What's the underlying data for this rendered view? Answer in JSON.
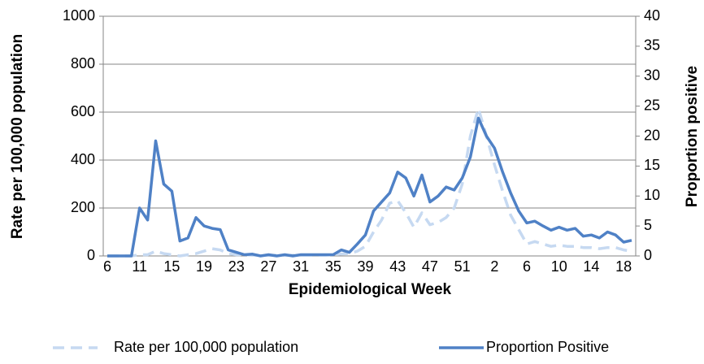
{
  "chart_data": {
    "type": "line",
    "xlabel": "Epidemiological Week",
    "ylabel": "Rate per 100,000 population",
    "y2label": "Proportion positive",
    "categories": [
      "6",
      null,
      null,
      null,
      "11",
      null,
      null,
      null,
      "15",
      null,
      null,
      null,
      "19",
      null,
      null,
      null,
      "23",
      null,
      null,
      null,
      "27",
      null,
      null,
      null,
      "31",
      null,
      null,
      null,
      "35",
      null,
      null,
      null,
      "39",
      null,
      null,
      null,
      "43",
      null,
      null,
      null,
      "47",
      null,
      null,
      null,
      "51",
      null,
      null,
      null,
      "2",
      null,
      null,
      null,
      "6",
      null,
      null,
      null,
      "10",
      null,
      null,
      null,
      "14",
      null,
      null,
      null,
      "18",
      null
    ],
    "series": [
      {
        "name": "Rate per 100,000 population",
        "color": "#c6d9f1",
        "dashed": true,
        "values": [
          0,
          0,
          0,
          0,
          5,
          5,
          20,
          10,
          5,
          0,
          5,
          10,
          20,
          30,
          25,
          10,
          5,
          5,
          3,
          3,
          3,
          3,
          3,
          3,
          3,
          3,
          3,
          3,
          5,
          8,
          10,
          20,
          40,
          100,
          150,
          220,
          230,
          180,
          120,
          180,
          130,
          140,
          160,
          200,
          300,
          500,
          615,
          500,
          380,
          270,
          170,
          110,
          50,
          60,
          50,
          40,
          45,
          40,
          40,
          35,
          35,
          30,
          35,
          35,
          25,
          20
        ]
      },
      {
        "name": "Proportion Positive",
        "color": "#4f81c6",
        "axis": "y2",
        "values": [
          0,
          0,
          0,
          0,
          8,
          6,
          19.2,
          12,
          10.8,
          2.5,
          3,
          6.4,
          5,
          4.6,
          4.4,
          1,
          0.6,
          0.2,
          0.3,
          0,
          0.2,
          0,
          0.2,
          0,
          0.2,
          0.2,
          0.2,
          0.2,
          0.2,
          1,
          0.6,
          2,
          3.5,
          7.5,
          9,
          10.5,
          14,
          13,
          10,
          13.5,
          9,
          10,
          11.5,
          11,
          13,
          16.5,
          23,
          20,
          18,
          14,
          10.5,
          7.5,
          5.5,
          5.8,
          5,
          4.3,
          4.8,
          4.3,
          4.6,
          3.3,
          3.5,
          3,
          4,
          3.5,
          2.3,
          2.6
        ]
      }
    ],
    "ylim": [
      0,
      1000
    ],
    "yticks": [
      0,
      200,
      400,
      600,
      800,
      1000
    ],
    "y2lim": [
      0,
      40
    ],
    "y2ticks": [
      0,
      5,
      10,
      15,
      20,
      25,
      30,
      35,
      40
    ],
    "grid": true,
    "legend": "bottom"
  }
}
